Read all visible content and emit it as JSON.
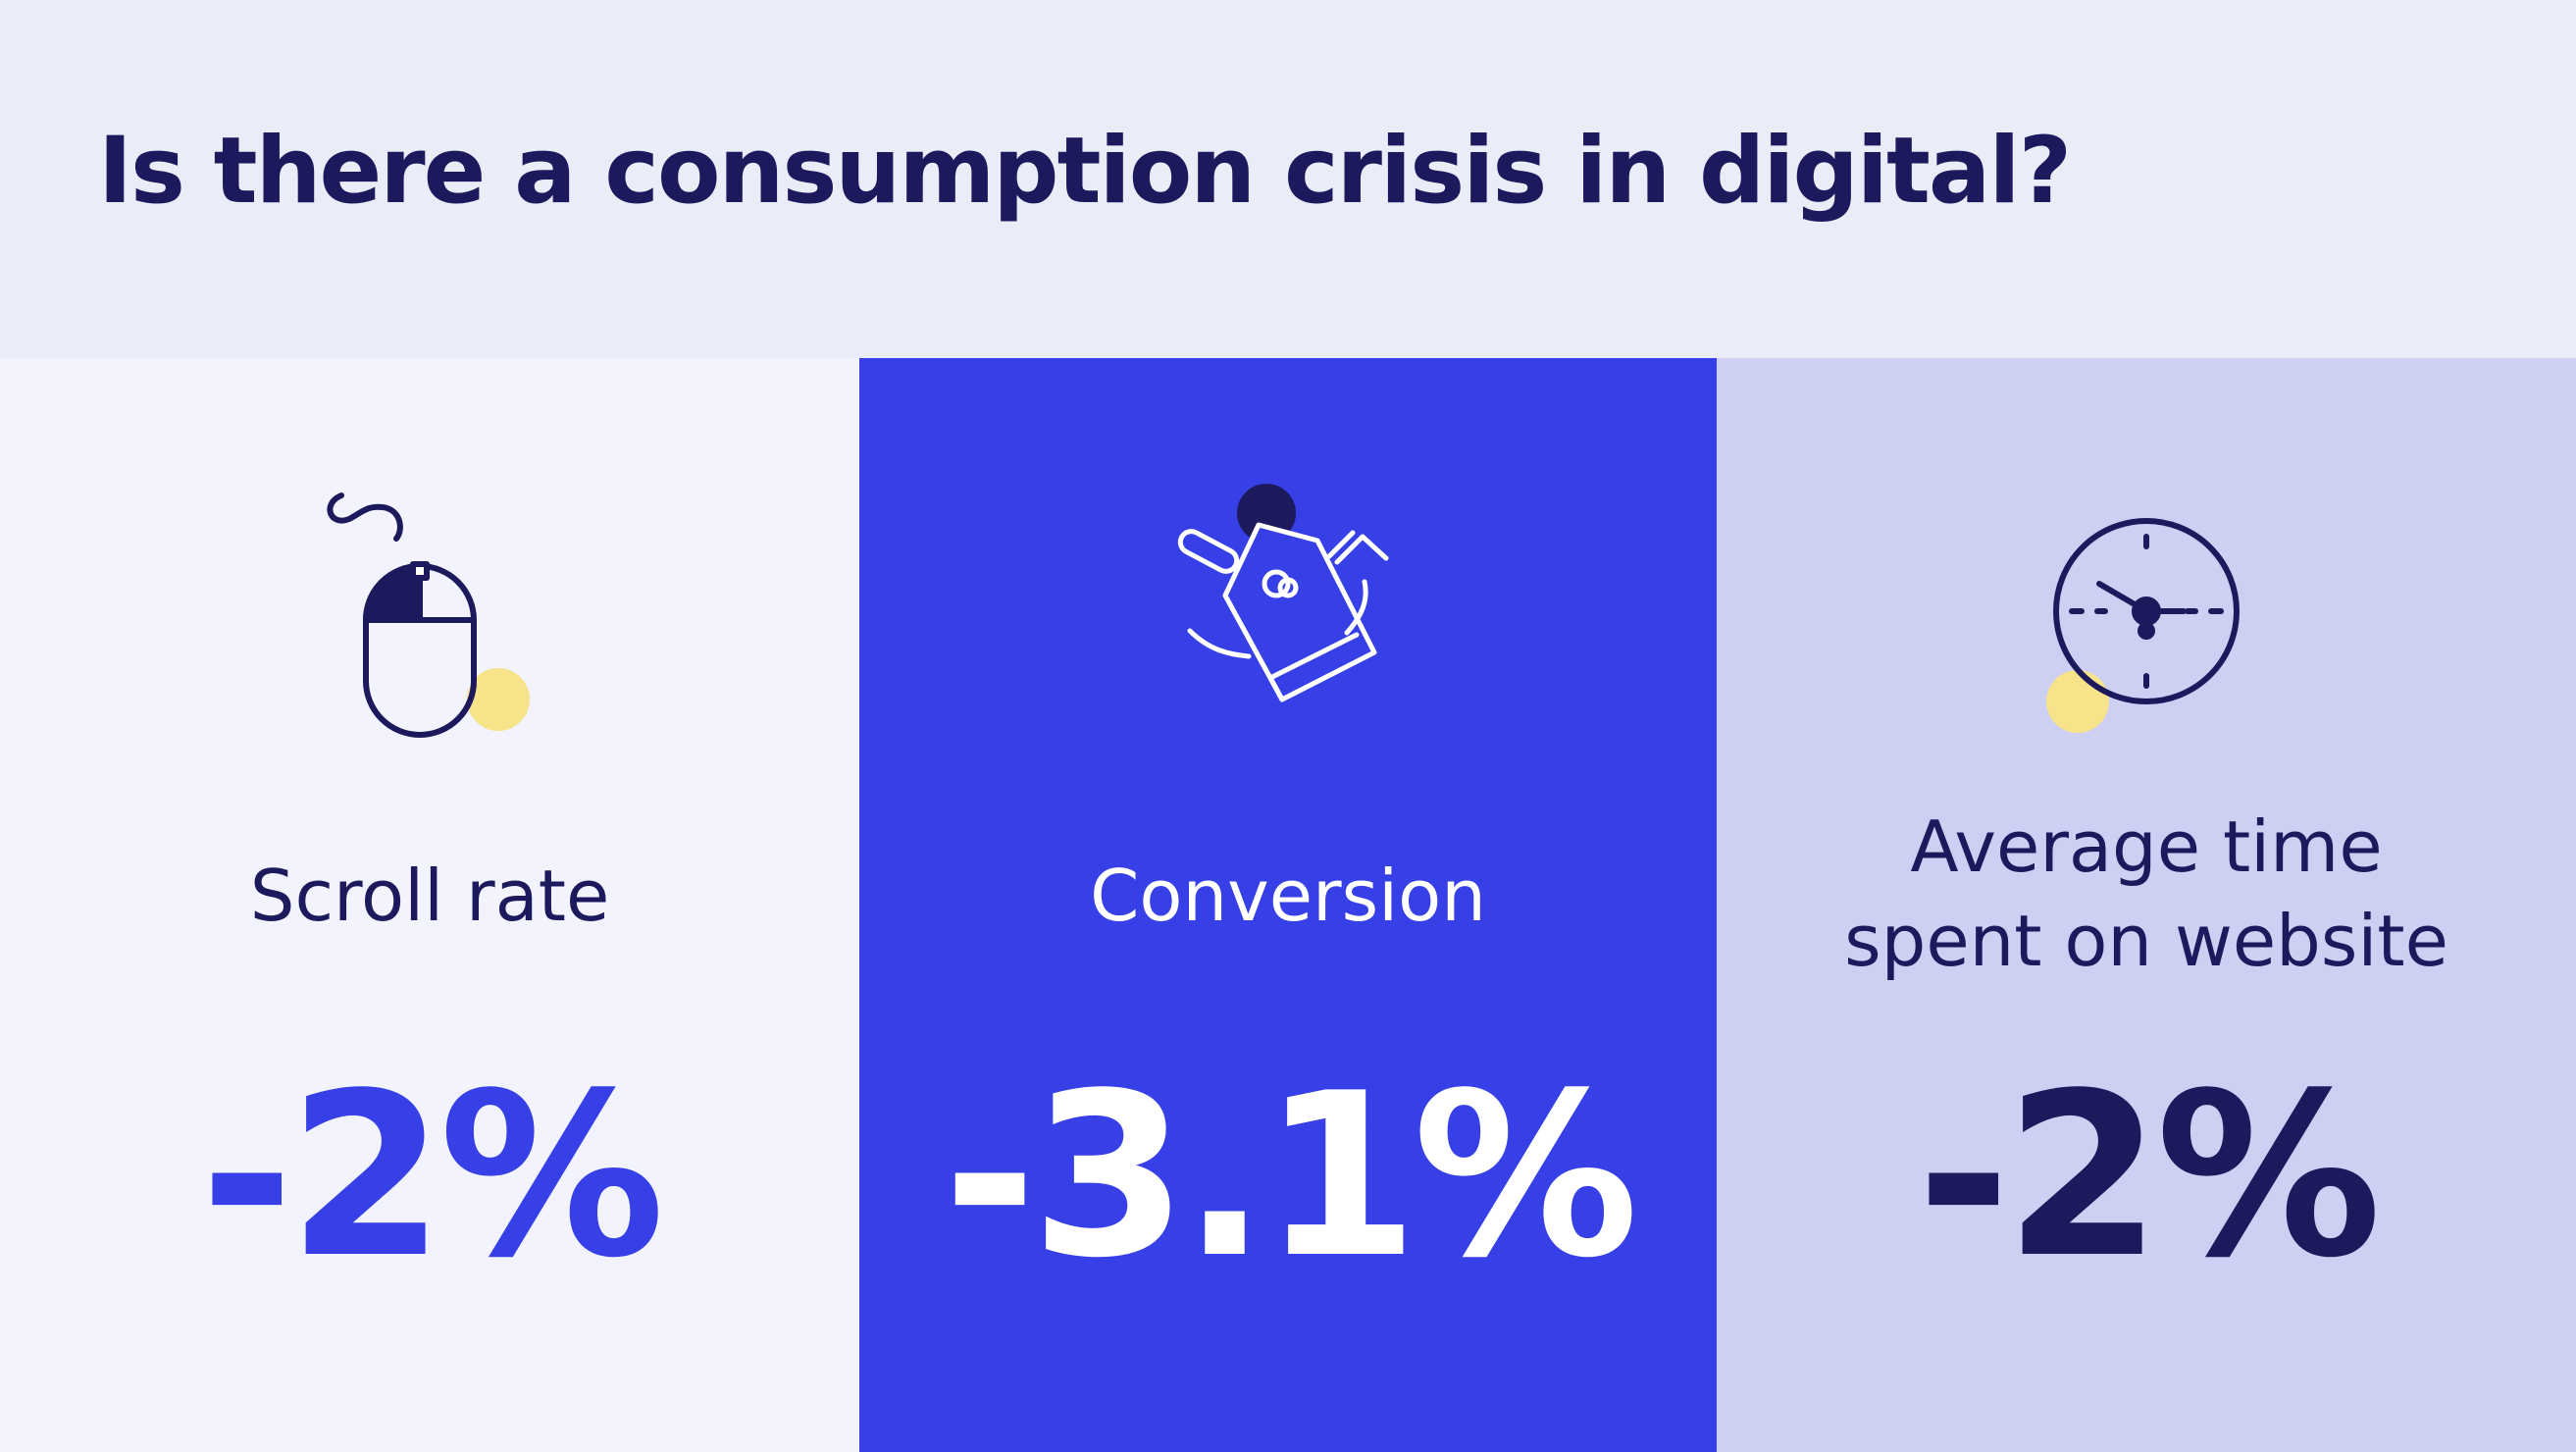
{
  "title": "Is there a consumption crisis in digital?",
  "metrics": [
    {
      "label_lines": [
        "Scroll rate"
      ],
      "value": "-2%",
      "icon": "mouse-icon",
      "background": "#f2f3fd",
      "value_color": "#3640e6"
    },
    {
      "label_lines": [
        "Conversion"
      ],
      "value": "-3.1%",
      "icon": "shopping-bag-icon",
      "background": "#3640e6",
      "value_color": "#ffffff"
    },
    {
      "label_lines": [
        "Average time",
        "spent on website"
      ],
      "value": "-2%",
      "icon": "clock-icon",
      "background": "#cdd0f3",
      "value_color": "#1c1a5c"
    }
  ],
  "colors": {
    "navy": "#1c1a5c",
    "blue": "#3640e6",
    "accent_yellow": "#f7e38a"
  }
}
